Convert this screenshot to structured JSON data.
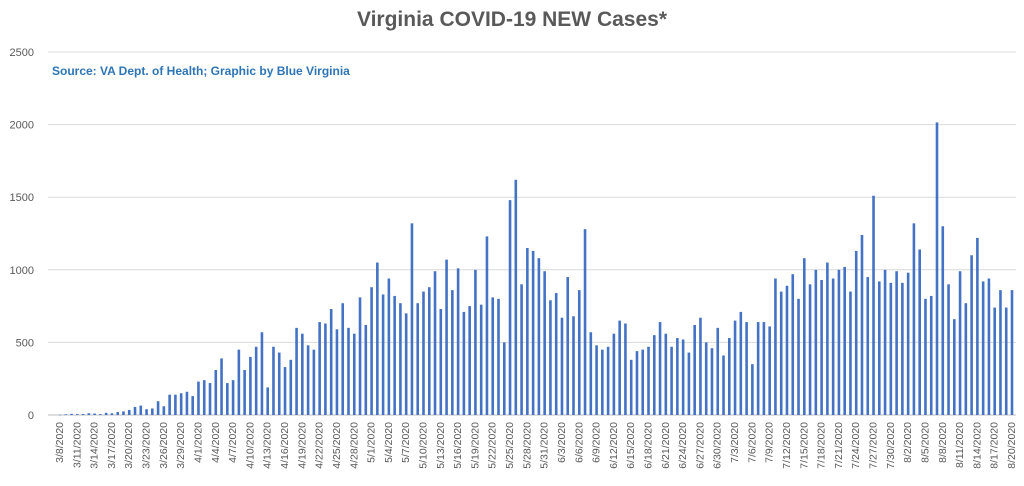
{
  "chart_data": {
    "type": "bar",
    "title": "Virginia COVID-19 NEW Cases*",
    "subtitle": "Source: VA Dept. of Health; Graphic by Blue Virginia",
    "start_date": "3/8/2020",
    "xlabel": "",
    "ylabel": "",
    "ylim": [
      0,
      2500
    ],
    "y_ticks": [
      0,
      500,
      1000,
      1500,
      2000,
      2500
    ],
    "x_tick_labels": [
      "3/8/2020",
      "3/11/2020",
      "3/14/2020",
      "3/17/2020",
      "3/20/2020",
      "3/23/2020",
      "3/26/2020",
      "3/29/2020",
      "4/1/2020",
      "4/4/2020",
      "4/7/2020",
      "4/10/2020",
      "4/13/2020",
      "4/16/2020",
      "4/19/2020",
      "4/22/2020",
      "4/25/2020",
      "4/28/2020",
      "5/1/2020",
      "5/4/2020",
      "5/7/2020",
      "5/10/2020",
      "5/13/2020",
      "5/16/2020",
      "5/19/2020",
      "5/22/2020",
      "5/25/2020",
      "5/28/2020",
      "5/31/2020",
      "6/3/2020",
      "6/6/2020",
      "6/9/2020",
      "6/12/2020",
      "6/15/2020",
      "6/18/2020",
      "6/21/2020",
      "6/24/2020",
      "6/27/2020",
      "6/30/2020",
      "7/3/2020",
      "7/6/2020",
      "7/9/2020",
      "7/12/2020",
      "7/15/2020",
      "7/18/2020",
      "7/21/2020",
      "7/24/2020",
      "7/27/2020",
      "7/30/2020",
      "8/2/2020",
      "8/5/2020",
      "8/8/2020",
      "8/11/2020",
      "8/14/2020",
      "8/17/2020",
      "8/20/2020"
    ],
    "grid": true,
    "bar_color": "#4472c4",
    "values": [
      2,
      5,
      8,
      6,
      7,
      12,
      10,
      6,
      15,
      12,
      20,
      25,
      35,
      55,
      65,
      40,
      45,
      95,
      60,
      140,
      140,
      150,
      160,
      130,
      230,
      240,
      220,
      310,
      390,
      220,
      240,
      450,
      310,
      400,
      470,
      570,
      190,
      470,
      430,
      330,
      380,
      600,
      560,
      480,
      450,
      640,
      630,
      730,
      590,
      770,
      600,
      560,
      810,
      620,
      880,
      1050,
      830,
      940,
      820,
      770,
      700,
      1320,
      770,
      850,
      880,
      990,
      730,
      1070,
      860,
      1010,
      710,
      750,
      1000,
      760,
      1230,
      810,
      800,
      500,
      1480,
      1620,
      900,
      1150,
      1130,
      1080,
      990,
      790,
      840,
      670,
      950,
      680,
      860,
      1280,
      570,
      480,
      450,
      470,
      560,
      650,
      630,
      380,
      440,
      450,
      470,
      550,
      640,
      560,
      470,
      530,
      520,
      430,
      620,
      670,
      500,
      460,
      600,
      410,
      530,
      650,
      710,
      640,
      350,
      640,
      640,
      610,
      940,
      850,
      890,
      970,
      800,
      1080,
      900,
      1000,
      930,
      1050,
      940,
      1000,
      1020,
      850,
      1130,
      1240,
      950,
      1510,
      920,
      1000,
      910,
      990,
      910,
      980,
      1320,
      1140,
      800,
      820,
      2015,
      1300,
      900,
      660,
      990,
      770,
      1100,
      1220,
      920,
      940,
      740,
      860,
      740,
      860
    ]
  }
}
